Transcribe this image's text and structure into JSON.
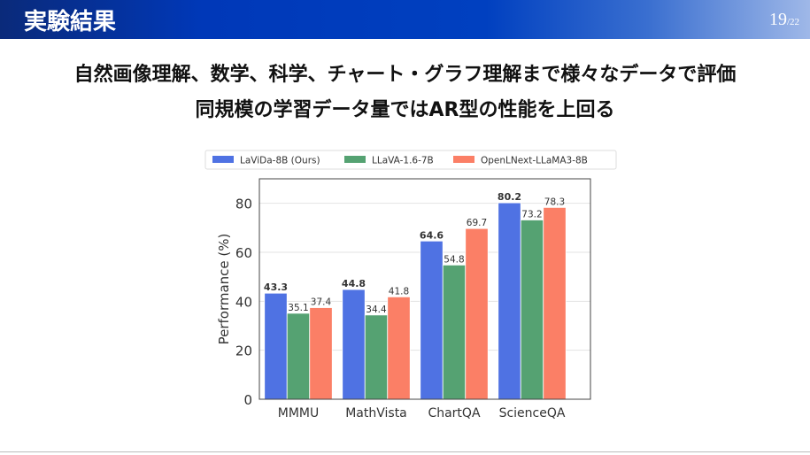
{
  "header": {
    "title": "実験結果",
    "page": "19",
    "total": "/22"
  },
  "subtitle_lines": [
    "自然画像理解、数学、科学、チャート・グラフ理解まで様々なデータで評価",
    "同規模の学習データ量ではAR型の性能を上回る"
  ],
  "chart_data": {
    "type": "bar",
    "categories": [
      "MMMU",
      "MathVista",
      "ChartQA",
      "ScienceQA"
    ],
    "series": [
      {
        "name": "LaViDa-8B (Ours)",
        "values": [
          43.3,
          44.8,
          64.6,
          80.2
        ],
        "color": "#4f72e3",
        "bold_labels": true
      },
      {
        "name": "LLaVA-1.6-7B",
        "values": [
          35.1,
          34.4,
          54.8,
          73.2
        ],
        "color": "#55a272",
        "bold_labels": false
      },
      {
        "name": "OpenLNext-LLaMA3-8B",
        "values": [
          37.4,
          41.8,
          69.7,
          78.3
        ],
        "color": "#fb7f66",
        "bold_labels": false
      }
    ],
    "ylabel": "Performance (%)",
    "xlabel": "",
    "ylim": [
      0,
      90
    ],
    "yticks": [
      0,
      20,
      40,
      60,
      80
    ],
    "grid": "horizontal",
    "legend": "top"
  }
}
